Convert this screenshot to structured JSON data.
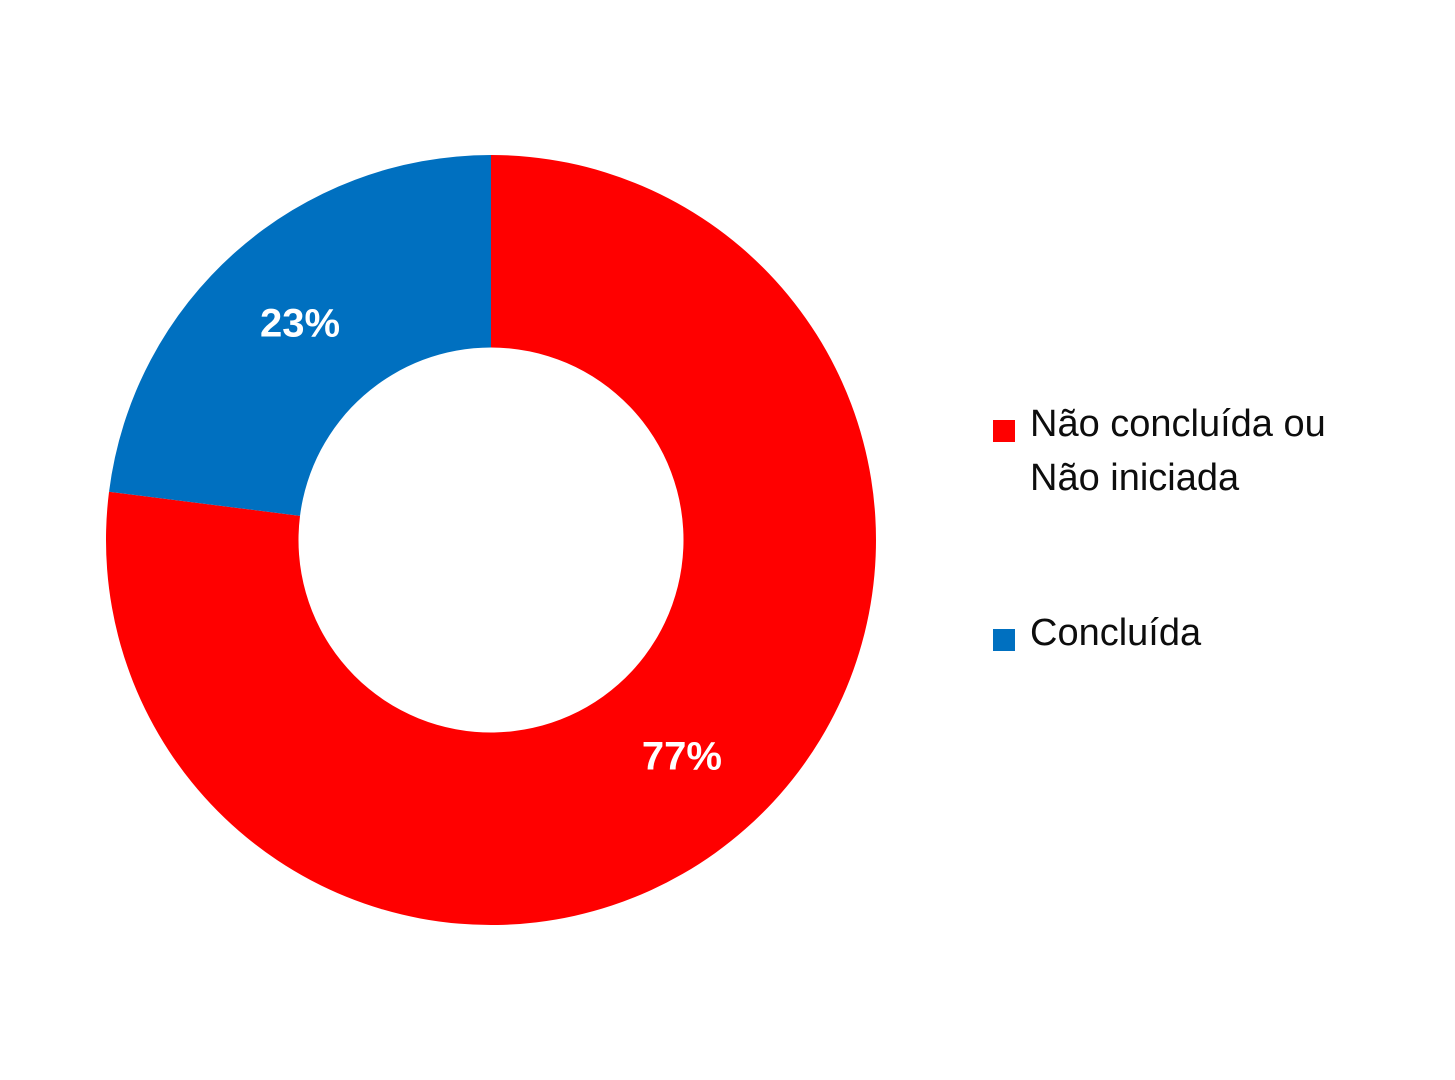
{
  "background_color": "#ffffff",
  "chart_data": {
    "type": "pie",
    "subtype": "donut",
    "title": "",
    "categories": [
      "Não concluída ou Não iniciada",
      "Concluída"
    ],
    "values": [
      77,
      23
    ],
    "unit": "%",
    "slices": [
      {
        "label": "Não concluída ou Não iniciada",
        "value": 77,
        "percent_label": "77%",
        "color": "#ff0000",
        "label_color": "#ffffff"
      },
      {
        "label": "Concluída",
        "value": 23,
        "percent_label": "23%",
        "color": "#0070c0",
        "label_color": "#ffffff"
      }
    ],
    "start_angle_deg": -90,
    "direction": "clockwise",
    "inner_radius_ratio": 0.5,
    "legend_position": "right",
    "legend": [
      {
        "lines": [
          "Não concluída ou",
          "Não iniciada"
        ],
        "color": "#ff0000"
      },
      {
        "lines": [
          "Concluída"
        ],
        "color": "#0070c0"
      }
    ],
    "legend_text_color": "#0d0d0d"
  }
}
